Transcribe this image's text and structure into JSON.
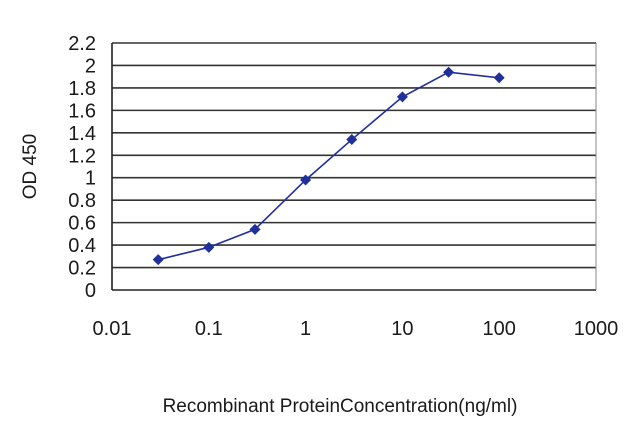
{
  "chart_data": {
    "type": "line",
    "title": "",
    "xlabel": "Recombinant ProteinConcentration(ng/ml)",
    "ylabel": "OD 450",
    "x_scale": "log",
    "xlim": [
      0.01,
      1000
    ],
    "ylim": [
      0,
      2.2
    ],
    "x_ticks": [
      "0.01",
      "0.1",
      "1",
      "10",
      "100",
      "1000"
    ],
    "y_ticks": [
      "0",
      "0.2",
      "0.4",
      "0.6",
      "0.8",
      "1",
      "1.2",
      "1.4",
      "1.6",
      "1.8",
      "2",
      "2.2"
    ],
    "grid": "horizontal",
    "legend": "none",
    "colors": {
      "series": "#1f2f9c",
      "plot_bg": "#ffffff",
      "grid": "#333333"
    },
    "series": [
      {
        "x": [
          0.03,
          0.1,
          0.3,
          1,
          3,
          10,
          30,
          100
        ],
        "y": [
          0.27,
          0.38,
          0.54,
          0.98,
          1.34,
          1.72,
          1.94,
          1.89
        ]
      }
    ]
  }
}
